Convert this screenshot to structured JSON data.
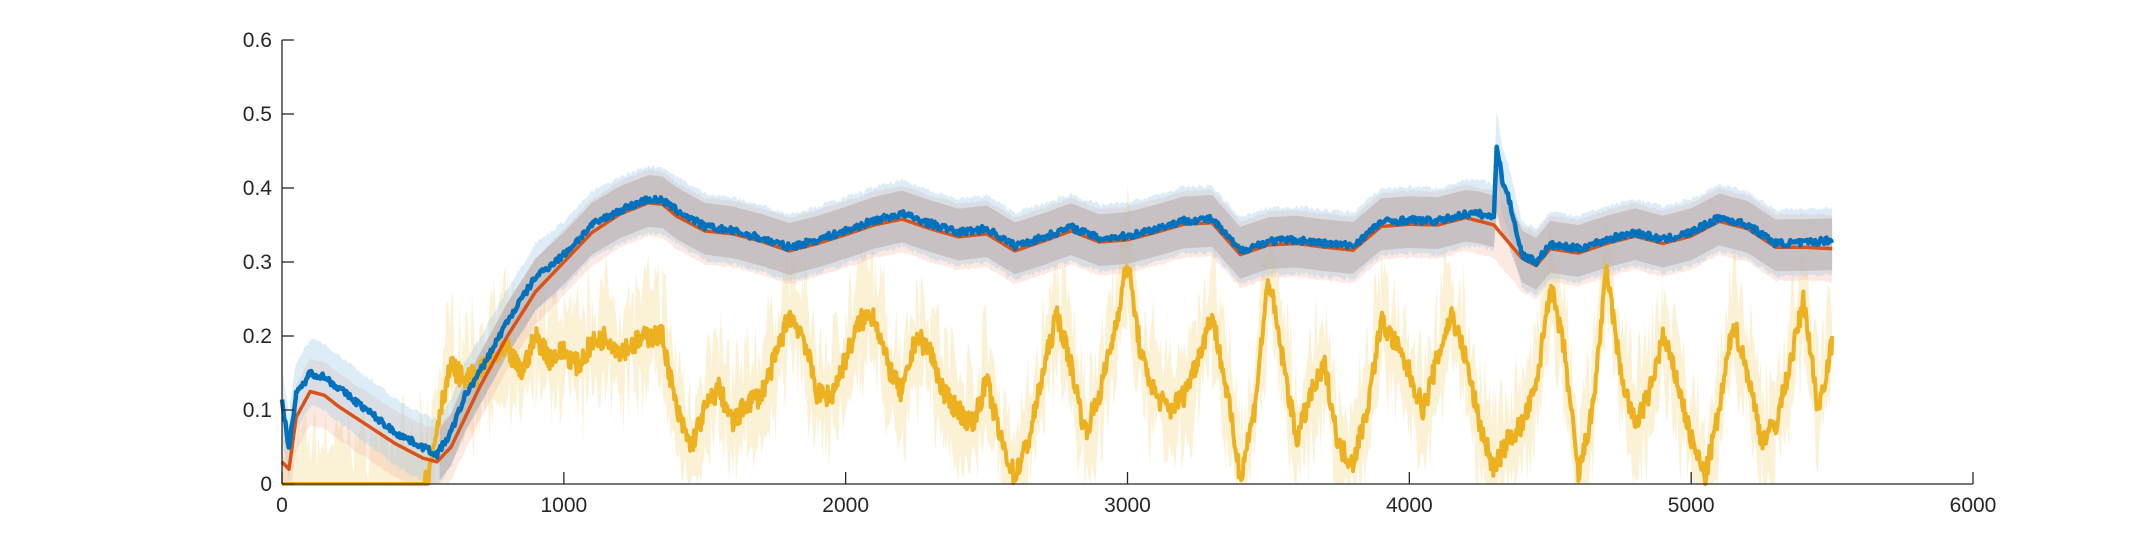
{
  "chart_data": {
    "type": "line",
    "title": "",
    "xlabel": "",
    "ylabel": "",
    "xlim": [
      0,
      6000
    ],
    "ylim": [
      0,
      0.6
    ],
    "xticks": [
      0,
      1000,
      2000,
      3000,
      4000,
      5000,
      6000
    ],
    "xtick_labels": [
      "0",
      "1000",
      "2000",
      "3000",
      "4000",
      "5000",
      "6000"
    ],
    "yticks": [
      0,
      0.1,
      0.2,
      0.3,
      0.4,
      0.5,
      0.6
    ],
    "ytick_labels": [
      "0",
      "0.1",
      "0.2",
      "0.3",
      "0.4",
      "0.5",
      "0.6"
    ],
    "grid": false,
    "legend": "none",
    "series": [
      {
        "color": "#0072BD",
        "band_color": "#9ECAE8",
        "x": [
          0,
          25,
          50,
          100,
          150,
          200,
          300,
          400,
          500,
          550,
          600,
          650,
          700,
          800,
          900,
          1000,
          1100,
          1200,
          1300,
          1350,
          1400,
          1500,
          1600,
          1700,
          1800,
          1900,
          2000,
          2100,
          2200,
          2300,
          2400,
          2500,
          2600,
          2700,
          2800,
          2900,
          3000,
          3100,
          3200,
          3300,
          3400,
          3500,
          3600,
          3700,
          3800,
          3900,
          4000,
          4100,
          4200,
          4250,
          4300,
          4310,
          4330,
          4350,
          4400,
          4450,
          4500,
          4600,
          4700,
          4800,
          4900,
          5000,
          5100,
          5200,
          5300,
          5400,
          5500
        ],
        "y": [
          0.11,
          0.05,
          0.12,
          0.15,
          0.145,
          0.13,
          0.1,
          0.07,
          0.05,
          0.04,
          0.07,
          0.12,
          0.15,
          0.22,
          0.28,
          0.31,
          0.35,
          0.37,
          0.385,
          0.383,
          0.37,
          0.348,
          0.342,
          0.332,
          0.32,
          0.33,
          0.342,
          0.356,
          0.365,
          0.352,
          0.34,
          0.345,
          0.322,
          0.333,
          0.347,
          0.332,
          0.335,
          0.345,
          0.356,
          0.358,
          0.315,
          0.328,
          0.33,
          0.325,
          0.322,
          0.354,
          0.357,
          0.355,
          0.365,
          0.365,
          0.36,
          0.46,
          0.41,
          0.39,
          0.31,
          0.3,
          0.323,
          0.318,
          0.33,
          0.34,
          0.33,
          0.34,
          0.36,
          0.35,
          0.325,
          0.326,
          0.33
        ]
      },
      {
        "color": "#D95319",
        "band_color": "#F2B7A0",
        "x": [
          0,
          25,
          50,
          100,
          150,
          200,
          300,
          400,
          500,
          550,
          600,
          650,
          700,
          800,
          900,
          1000,
          1100,
          1200,
          1300,
          1350,
          1400,
          1500,
          1600,
          1700,
          1800,
          1900,
          2000,
          2100,
          2200,
          2300,
          2400,
          2500,
          2600,
          2700,
          2800,
          2900,
          3000,
          3100,
          3200,
          3300,
          3400,
          3500,
          3600,
          3700,
          3800,
          3900,
          4000,
          4100,
          4200,
          4300,
          4400,
          4450,
          4500,
          4600,
          4700,
          4800,
          4900,
          5000,
          5100,
          5200,
          5300,
          5400,
          5500
        ],
        "y": [
          0.03,
          0.02,
          0.09,
          0.125,
          0.12,
          0.105,
          0.08,
          0.055,
          0.035,
          0.03,
          0.05,
          0.09,
          0.13,
          0.2,
          0.26,
          0.3,
          0.34,
          0.365,
          0.38,
          0.378,
          0.362,
          0.342,
          0.338,
          0.328,
          0.315,
          0.325,
          0.337,
          0.35,
          0.358,
          0.345,
          0.334,
          0.338,
          0.315,
          0.328,
          0.342,
          0.327,
          0.33,
          0.34,
          0.351,
          0.353,
          0.31,
          0.323,
          0.325,
          0.32,
          0.316,
          0.348,
          0.351,
          0.35,
          0.36,
          0.35,
          0.305,
          0.295,
          0.318,
          0.312,
          0.325,
          0.335,
          0.325,
          0.335,
          0.355,
          0.345,
          0.32,
          0.32,
          0.318
        ]
      },
      {
        "color": "#EDB120",
        "band_color": "#F7DFA0",
        "x": [
          0,
          100,
          200,
          300,
          400,
          500,
          520,
          560,
          600,
          650,
          700,
          750,
          800,
          850,
          900,
          950,
          1000,
          1050,
          1100,
          1150,
          1200,
          1250,
          1300,
          1350,
          1400,
          1450,
          1500,
          1550,
          1600,
          1650,
          1700,
          1750,
          1800,
          1850,
          1900,
          1950,
          2000,
          2050,
          2100,
          2150,
          2200,
          2250,
          2300,
          2350,
          2400,
          2450,
          2500,
          2550,
          2600,
          2650,
          2700,
          2750,
          2800,
          2850,
          2900,
          2950,
          3000,
          3050,
          3100,
          3150,
          3200,
          3250,
          3300,
          3350,
          3400,
          3450,
          3500,
          3550,
          3600,
          3650,
          3700,
          3750,
          3800,
          3850,
          3900,
          3950,
          4000,
          4050,
          4100,
          4150,
          4200,
          4250,
          4300,
          4350,
          4400,
          4450,
          4500,
          4550,
          4600,
          4650,
          4700,
          4750,
          4800,
          4850,
          4900,
          4950,
          5000,
          5050,
          5100,
          5150,
          5200,
          5250,
          5300,
          5350,
          5400,
          5450,
          5500
        ],
        "y": [
          0,
          0,
          0,
          0,
          0,
          0,
          0.01,
          0.1,
          0.16,
          0.14,
          0.15,
          0.17,
          0.18,
          0.15,
          0.2,
          0.17,
          0.18,
          0.16,
          0.19,
          0.2,
          0.18,
          0.19,
          0.2,
          0.2,
          0.1,
          0.05,
          0.1,
          0.13,
          0.08,
          0.11,
          0.12,
          0.17,
          0.23,
          0.2,
          0.12,
          0.12,
          0.17,
          0.22,
          0.23,
          0.16,
          0.12,
          0.2,
          0.18,
          0.12,
          0.1,
          0.08,
          0.14,
          0.06,
          0.01,
          0.06,
          0.15,
          0.23,
          0.16,
          0.07,
          0.12,
          0.2,
          0.3,
          0.17,
          0.12,
          0.1,
          0.12,
          0.17,
          0.23,
          0.13,
          0.01,
          0.1,
          0.28,
          0.17,
          0.06,
          0.12,
          0.16,
          0.05,
          0.03,
          0.1,
          0.22,
          0.19,
          0.15,
          0.1,
          0.17,
          0.23,
          0.17,
          0.08,
          0.02,
          0.06,
          0.08,
          0.13,
          0.27,
          0.18,
          0.01,
          0.1,
          0.29,
          0.15,
          0.08,
          0.12,
          0.2,
          0.14,
          0.06,
          0.01,
          0.1,
          0.22,
          0.15,
          0.06,
          0.08,
          0.16,
          0.25,
          0.1,
          0.19
        ]
      }
    ]
  }
}
